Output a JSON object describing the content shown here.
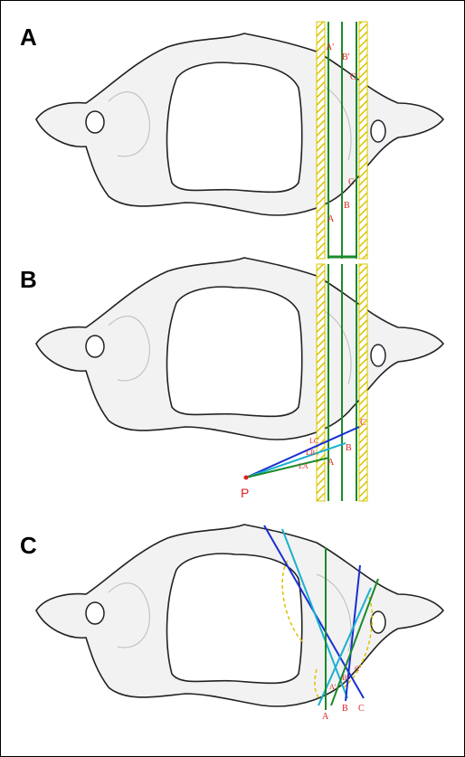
{
  "panels": [
    {
      "label": "A",
      "points": [
        "A'",
        "B'",
        "C'",
        "C",
        "B",
        "A"
      ]
    },
    {
      "label": "B",
      "points": [
        "C",
        "B",
        "A",
        "LC",
        "LB",
        "LA",
        "P"
      ]
    },
    {
      "label": "C",
      "points": [
        "A",
        "B",
        "C",
        "A'",
        "B'",
        "C'"
      ]
    }
  ]
}
